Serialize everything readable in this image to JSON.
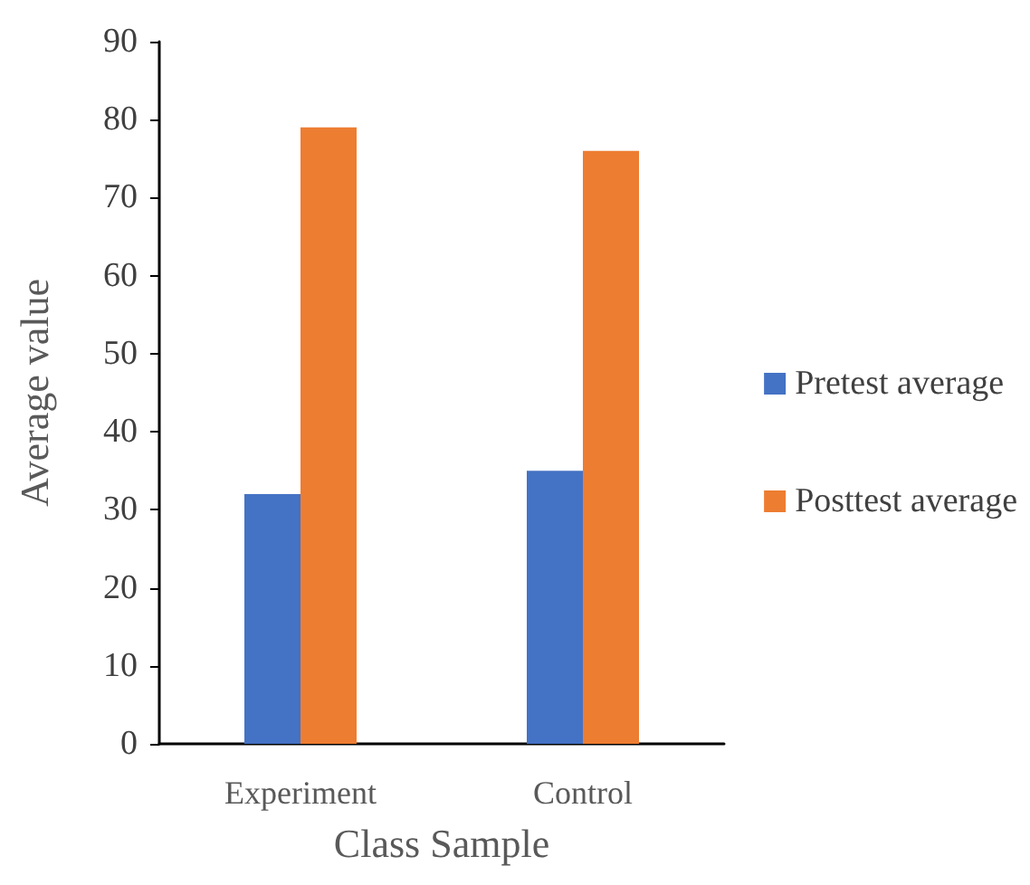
{
  "chart_data": {
    "type": "bar",
    "xlabel": "Class Sample",
    "ylabel": "Average value",
    "categories": [
      "Experiment",
      "Control"
    ],
    "series": [
      {
        "name": "Pretest average",
        "color": "#4472c4",
        "values": [
          32,
          35
        ]
      },
      {
        "name": "Posttest average",
        "color": "#ed7d31",
        "values": [
          79,
          76
        ]
      }
    ],
    "ylim": [
      0,
      90
    ],
    "yticks": [
      0,
      10,
      20,
      30,
      40,
      50,
      60,
      70,
      80,
      90
    ],
    "grid": false,
    "legend": "right"
  }
}
